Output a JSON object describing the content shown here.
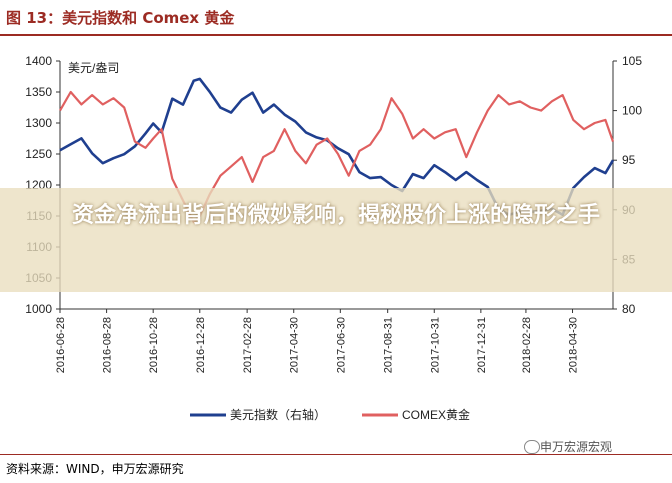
{
  "header": {
    "title": "图 13：美元指数和 Comex 黄金"
  },
  "footer": {
    "source": "资料来源：WIND，申万宏源研究",
    "watermark": "申万宏源宏观"
  },
  "overlay": {
    "headline": "资金净流出背后的微妙影响，揭秘股价上涨的隐形之手"
  },
  "chart_data": {
    "type": "line",
    "left_axis_label": "美元/盎司",
    "left_ylim": [
      1000,
      1400
    ],
    "left_ticks": [
      "1000",
      "1050",
      "1100",
      "1150",
      "1200",
      "1250",
      "1300",
      "1350",
      "1400"
    ],
    "right_ylim": [
      80,
      105
    ],
    "right_ticks": [
      "80",
      "85",
      "90",
      "95",
      "100",
      "105"
    ],
    "x_ticks": [
      "2016-06-28",
      "2016-08-28",
      "2016-10-28",
      "2016-12-28",
      "2017-02-28",
      "2017-04-30",
      "2017-06-30",
      "2017-08-31",
      "2017-10-31",
      "2017-12-31",
      "2018-02-28",
      "2018-04-30"
    ],
    "x_range": [
      "2016-06-28",
      "2018-06-22"
    ],
    "grid": false,
    "legend_position": "bottom",
    "series": [
      {
        "name": "美元指数（右轴）",
        "axis": "right",
        "color": "#1f3f8f",
        "points": [
          [
            "2016-06-28",
            96.0
          ],
          [
            "2016-07-12",
            96.6
          ],
          [
            "2016-07-26",
            97.2
          ],
          [
            "2016-08-09",
            95.7
          ],
          [
            "2016-08-23",
            94.7
          ],
          [
            "2016-09-06",
            95.2
          ],
          [
            "2016-09-20",
            95.6
          ],
          [
            "2016-10-04",
            96.4
          ],
          [
            "2016-10-18",
            97.7
          ],
          [
            "2016-10-28",
            98.7
          ],
          [
            "2016-11-08",
            97.8
          ],
          [
            "2016-11-22",
            101.2
          ],
          [
            "2016-12-06",
            100.6
          ],
          [
            "2016-12-20",
            103.0
          ],
          [
            "2016-12-28",
            103.2
          ],
          [
            "2017-01-10",
            101.9
          ],
          [
            "2017-01-24",
            100.3
          ],
          [
            "2017-02-07",
            99.8
          ],
          [
            "2017-02-21",
            101.1
          ],
          [
            "2017-03-07",
            101.8
          ],
          [
            "2017-03-21",
            99.8
          ],
          [
            "2017-04-04",
            100.6
          ],
          [
            "2017-04-18",
            99.6
          ],
          [
            "2017-05-02",
            98.9
          ],
          [
            "2017-05-16",
            97.8
          ],
          [
            "2017-05-30",
            97.3
          ],
          [
            "2017-06-13",
            97.0
          ],
          [
            "2017-06-27",
            96.2
          ],
          [
            "2017-07-11",
            95.6
          ],
          [
            "2017-07-25",
            93.8
          ],
          [
            "2017-08-08",
            93.2
          ],
          [
            "2017-08-22",
            93.3
          ],
          [
            "2017-09-05",
            92.5
          ],
          [
            "2017-09-19",
            91.9
          ],
          [
            "2017-10-03",
            93.6
          ],
          [
            "2017-10-17",
            93.2
          ],
          [
            "2017-10-31",
            94.5
          ],
          [
            "2017-11-14",
            93.8
          ],
          [
            "2017-11-28",
            93.0
          ],
          [
            "2017-12-12",
            93.8
          ],
          [
            "2017-12-26",
            93.0
          ],
          [
            "2018-01-09",
            92.3
          ],
          [
            "2018-01-23",
            90.1
          ],
          [
            "2018-02-06",
            89.5
          ],
          [
            "2018-02-20",
            89.8
          ],
          [
            "2018-03-06",
            89.8
          ],
          [
            "2018-03-20",
            89.9
          ],
          [
            "2018-04-03",
            90.1
          ],
          [
            "2018-04-17",
            89.5
          ],
          [
            "2018-05-01",
            92.2
          ],
          [
            "2018-05-15",
            93.3
          ],
          [
            "2018-05-29",
            94.2
          ],
          [
            "2018-06-12",
            93.7
          ],
          [
            "2018-06-22",
            95.0
          ]
        ]
      },
      {
        "name": "COMEX黄金",
        "axis": "left",
        "color": "#e06060",
        "points": [
          [
            "2016-06-28",
            1320
          ],
          [
            "2016-07-12",
            1350
          ],
          [
            "2016-07-26",
            1330
          ],
          [
            "2016-08-09",
            1345
          ],
          [
            "2016-08-23",
            1330
          ],
          [
            "2016-09-06",
            1340
          ],
          [
            "2016-09-20",
            1325
          ],
          [
            "2016-10-04",
            1270
          ],
          [
            "2016-10-18",
            1260
          ],
          [
            "2016-10-28",
            1275
          ],
          [
            "2016-11-08",
            1290
          ],
          [
            "2016-11-22",
            1210
          ],
          [
            "2016-12-06",
            1175
          ],
          [
            "2016-12-20",
            1140
          ],
          [
            "2016-12-28",
            1150
          ],
          [
            "2017-01-10",
            1185
          ],
          [
            "2017-01-24",
            1215
          ],
          [
            "2017-02-07",
            1230
          ],
          [
            "2017-02-21",
            1245
          ],
          [
            "2017-03-07",
            1205
          ],
          [
            "2017-03-21",
            1245
          ],
          [
            "2017-04-04",
            1255
          ],
          [
            "2017-04-18",
            1290
          ],
          [
            "2017-05-02",
            1255
          ],
          [
            "2017-05-16",
            1235
          ],
          [
            "2017-05-30",
            1265
          ],
          [
            "2017-06-13",
            1275
          ],
          [
            "2017-06-27",
            1250
          ],
          [
            "2017-07-11",
            1215
          ],
          [
            "2017-07-25",
            1255
          ],
          [
            "2017-08-08",
            1265
          ],
          [
            "2017-08-22",
            1290
          ],
          [
            "2017-09-05",
            1340
          ],
          [
            "2017-09-19",
            1315
          ],
          [
            "2017-10-03",
            1275
          ],
          [
            "2017-10-17",
            1290
          ],
          [
            "2017-10-31",
            1275
          ],
          [
            "2017-11-14",
            1285
          ],
          [
            "2017-11-28",
            1290
          ],
          [
            "2017-12-12",
            1245
          ],
          [
            "2017-12-26",
            1285
          ],
          [
            "2018-01-09",
            1320
          ],
          [
            "2018-01-23",
            1345
          ],
          [
            "2018-02-06",
            1330
          ],
          [
            "2018-02-20",
            1335
          ],
          [
            "2018-03-06",
            1325
          ],
          [
            "2018-03-20",
            1320
          ],
          [
            "2018-04-03",
            1335
          ],
          [
            "2018-04-17",
            1345
          ],
          [
            "2018-05-01",
            1305
          ],
          [
            "2018-05-15",
            1290
          ],
          [
            "2018-05-29",
            1300
          ],
          [
            "2018-06-12",
            1305
          ],
          [
            "2018-06-22",
            1270
          ]
        ]
      }
    ]
  }
}
